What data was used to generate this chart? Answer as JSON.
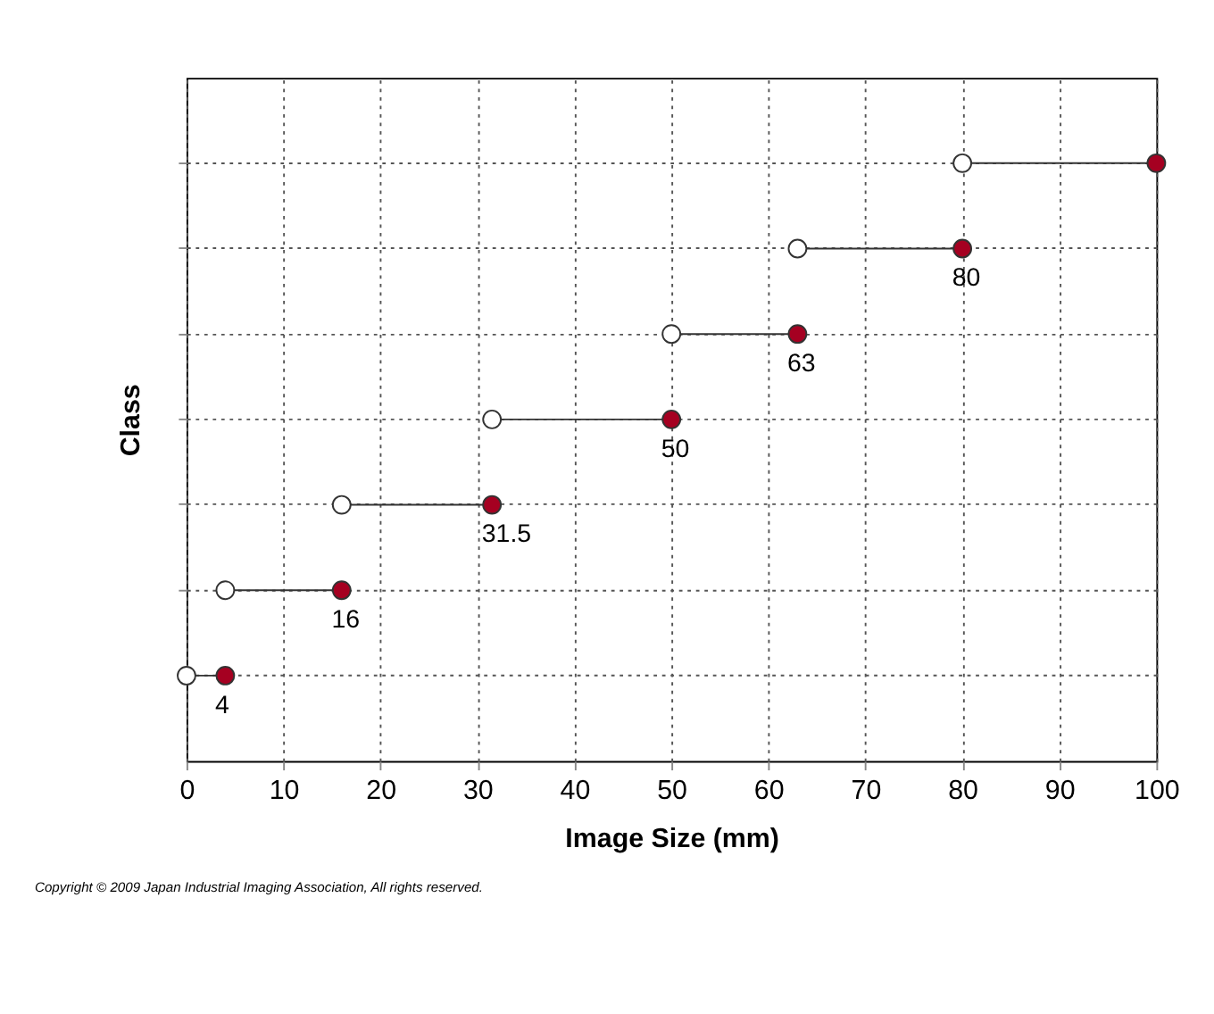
{
  "chart_data": {
    "type": "scatter",
    "orientation": "horizontal",
    "xlabel": "Image Size (mm)",
    "ylabel": "Class",
    "categories": [
      null,
      null,
      null,
      null,
      null,
      null,
      null
    ],
    "series": [
      {
        "color": "#ffffff",
        "values": [
          80,
          63,
          50,
          31.5,
          16,
          4,
          0
        ]
      },
      {
        "color": "#a50021",
        "values": [
          100,
          80,
          63,
          50,
          31.5,
          16,
          4
        ],
        "value_labels": [
          null,
          "80",
          "63",
          "50",
          "31.5",
          "16",
          "4"
        ]
      }
    ],
    "xlim": [
      0,
      100
    ],
    "xticks": [
      0,
      10,
      20,
      30,
      40,
      50,
      60,
      70,
      80,
      90,
      100
    ],
    "grid": true,
    "marker": "circle",
    "tick_labels": "x",
    "annotations": [
      "Copyright © 2009 Japan Industrial Imaging Association, All rights reserved."
    ]
  }
}
